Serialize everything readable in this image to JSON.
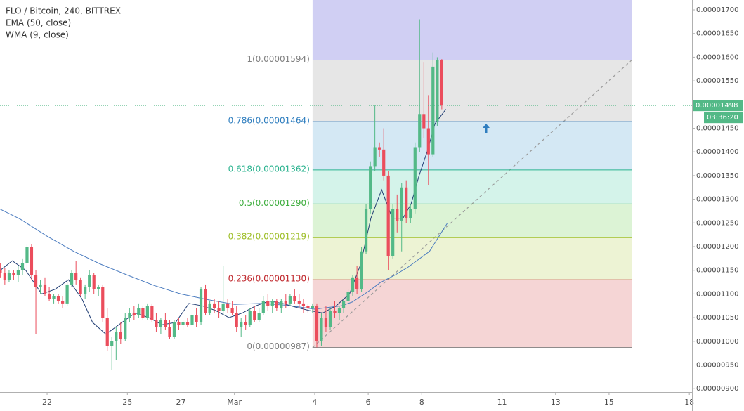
{
  "chart_data": {
    "type": "candlestick",
    "title": "FLO / Bitcoin, 240, BITTREX",
    "up_color": "#53b987",
    "down_color": "#eb4d5c",
    "x": [
      20.25,
      20.42,
      20.58,
      20.75,
      20.92,
      21.08,
      21.25,
      21.42,
      21.58,
      21.75,
      21.92,
      22.08,
      22.25,
      22.42,
      22.58,
      22.75,
      22.92,
      23.08,
      23.25,
      23.42,
      23.58,
      23.75,
      23.92,
      24.08,
      24.25,
      24.42,
      24.58,
      24.75,
      24.92,
      25.08,
      25.25,
      25.42,
      25.58,
      25.75,
      25.92,
      26.08,
      26.25,
      26.42,
      26.58,
      26.75,
      26.92,
      27.08,
      27.25,
      27.42,
      27.58,
      27.75,
      27.92,
      28.08,
      28.25,
      28.42,
      28.58,
      28.75,
      28.92,
      29.08,
      29.25,
      29.42,
      29.58,
      29.75,
      29.92,
      30.08,
      30.25,
      30.42,
      30.58,
      30.75,
      30.92,
      31.08,
      31.25,
      31.42,
      31.58,
      31.75,
      31.92,
      32.08,
      32.25,
      32.42,
      32.58,
      32.75,
      32.92,
      33.08,
      33.25,
      33.42,
      33.58,
      33.75,
      33.92,
      34.08,
      34.25,
      34.42,
      34.58,
      34.75,
      34.92,
      35.08,
      35.25,
      35.42,
      35.58,
      35.75,
      35.92,
      36.08,
      36.25,
      36.42,
      36.58,
      36.75
    ],
    "open": [
      1.15e-05,
      1.145e-05,
      1.13e-05,
      1.145e-05,
      1.14e-05,
      1.15e-05,
      1.165e-05,
      1.2e-05,
      1.14e-05,
      1.115e-05,
      1.12e-05,
      1.1e-05,
      1.09e-05,
      1.095e-05,
      1.085e-05,
      1.08e-05,
      1.12e-05,
      1.145e-05,
      1.13e-05,
      1.1e-05,
      1.115e-05,
      1.14e-05,
      1.11e-05,
      1.115e-05,
      1.05e-05,
      9.9e-06,
      1e-05,
      1.02e-05,
      1.005e-05,
      1.05e-05,
      1.06e-05,
      1.055e-05,
      1.07e-05,
      1.05e-05,
      1.075e-05,
      1.045e-05,
      1.03e-05,
      1.045e-05,
      1.03e-05,
      1.01e-05,
      1.04e-05,
      1.035e-05,
      1.04e-05,
      1.035e-05,
      1.055e-05,
      1.04e-05,
      1.11e-05,
      1.06e-05,
      1.08e-05,
      1.07e-05,
      1.065e-05,
      1.08e-05,
      1.07e-05,
      1.06e-05,
      1.03e-05,
      1.04e-05,
      1.035e-05,
      1.065e-05,
      1.045e-05,
      1.06e-05,
      1.085e-05,
      1.075e-05,
      1.085e-05,
      1.07e-05,
      1.085e-05,
      1.08e-05,
      1.095e-05,
      1.085e-05,
      1.08e-05,
      1.075e-05,
      1.07e-05,
      1.075e-05,
      1e-05,
      1.05e-05,
      1.03e-05,
      1.065e-05,
      1.06e-05,
      1.07e-05,
      1.085e-05,
      1.105e-05,
      1.135e-05,
      1.11e-05,
      1.19e-05,
      1.28e-05,
      1.37e-05,
      1.41e-05,
      1.405e-05,
      1.35e-05,
      1.18e-05,
      1.28e-05,
      1.255e-05,
      1.325e-05,
      1.26e-05,
      1.28e-05,
      1.41e-05,
      1.48e-05,
      1.45e-05,
      1.395e-05,
      1.465e-05,
      1.594e-05
    ],
    "high": [
      1.165e-05,
      1.155e-05,
      1.15e-05,
      1.15e-05,
      1.16e-05,
      1.175e-05,
      1.205e-05,
      1.205e-05,
      1.15e-05,
      1.13e-05,
      1.135e-05,
      1.115e-05,
      1.1e-05,
      1.1e-05,
      1.095e-05,
      1.125e-05,
      1.15e-05,
      1.17e-05,
      1.135e-05,
      1.12e-05,
      1.15e-05,
      1.145e-05,
      1.12e-05,
      1.12e-05,
      1.07e-05,
      1.01e-05,
      1.03e-05,
      1.04e-05,
      1.06e-05,
      1.07e-05,
      1.075e-05,
      1.08e-05,
      1.075e-05,
      1.08e-05,
      1.08e-05,
      1.06e-05,
      1.05e-05,
      1.06e-05,
      1.045e-05,
      1.045e-05,
      1.05e-05,
      1.045e-05,
      1.05e-05,
      1.06e-05,
      1.07e-05,
      1.115e-05,
      1.12e-05,
      1.085e-05,
      1.09e-05,
      1.085e-05,
      1.16e-05,
      1.09e-05,
      1.085e-05,
      1.075e-05,
      1.05e-05,
      1.055e-05,
      1.07e-05,
      1.075e-05,
      1.07e-05,
      1.095e-05,
      1.1e-05,
      1.09e-05,
      1.09e-05,
      1.09e-05,
      1.1e-05,
      1.1e-05,
      1.11e-05,
      1.1e-05,
      1.09e-05,
      1.08e-05,
      1.08e-05,
      1.08e-05,
      1.06e-05,
      1.075e-05,
      1.07e-05,
      1.085e-05,
      1.075e-05,
      1.09e-05,
      1.11e-05,
      1.14e-05,
      1.16e-05,
      1.2e-05,
      1.29e-05,
      1.38e-05,
      1.498e-05,
      1.42e-05,
      1.45e-05,
      1.36e-05,
      1.29e-05,
      1.31e-05,
      1.335e-05,
      1.34e-05,
      1.29e-05,
      1.42e-05,
      1.68e-05,
      1.59e-05,
      1.52e-05,
      1.61e-05,
      1.6e-05,
      1.596e-05
    ],
    "low": [
      1.135e-05,
      1.12e-05,
      1.125e-05,
      1.13e-05,
      1.125e-05,
      1.14e-05,
      1.15e-05,
      1.13e-05,
      1.015e-05,
      1.1e-05,
      1.095e-05,
      1.085e-05,
      1.08e-05,
      1.08e-05,
      1.07e-05,
      1.075e-05,
      1.115e-05,
      1.12e-05,
      1.095e-05,
      1.09e-05,
      1.105e-05,
      1.1e-05,
      1.095e-05,
      1.04e-05,
      9.8e-06,
      9.4e-06,
      9.6e-06,
      9.95e-06,
      1e-05,
      1.04e-05,
      1.045e-05,
      1.05e-05,
      1.045e-05,
      1.045e-05,
      1.04e-05,
      1.02e-05,
      1.015e-05,
      1.025e-05,
      1.005e-05,
      1.005e-05,
      1.025e-05,
      1.025e-05,
      1.03e-05,
      1.03e-05,
      1.03e-05,
      1.035e-05,
      1.055e-05,
      1.055e-05,
      1.06e-05,
      1.05e-05,
      1.055e-05,
      1.06e-05,
      1.055e-05,
      1.02e-05,
      1.01e-05,
      1.025e-05,
      1.03e-05,
      1.04e-05,
      1.04e-05,
      1.055e-05,
      1.065e-05,
      1.06e-05,
      1.065e-05,
      1.06e-05,
      1.07e-05,
      1.075e-05,
      1.08e-05,
      1.07e-05,
      1.06e-05,
      1.06e-05,
      1.06e-05,
      9.87e-06,
      9.9e-06,
      1.02e-05,
      1.025e-05,
      1.05e-05,
      1.045e-05,
      1.06e-05,
      1.08e-05,
      1.095e-05,
      1.1e-05,
      1.105e-05,
      1.185e-05,
      1.27e-05,
      1.36e-05,
      1.39e-05,
      1.34e-05,
      1.15e-05,
      1.175e-05,
      1.23e-05,
      1.19e-05,
      1.25e-05,
      1.25e-05,
      1.27e-05,
      1.4e-05,
      1.43e-05,
      1.33e-05,
      1.39e-05,
      1.455e-05,
      1.49e-05
    ],
    "close": [
      1.145e-05,
      1.13e-05,
      1.145e-05,
      1.14e-05,
      1.15e-05,
      1.165e-05,
      1.2e-05,
      1.14e-05,
      1.115e-05,
      1.12e-05,
      1.1e-05,
      1.09e-05,
      1.095e-05,
      1.085e-05,
      1.08e-05,
      1.12e-05,
      1.145e-05,
      1.13e-05,
      1.1e-05,
      1.115e-05,
      1.14e-05,
      1.11e-05,
      1.115e-05,
      1.05e-05,
      9.9e-06,
      1e-05,
      1.02e-05,
      1.005e-05,
      1.05e-05,
      1.06e-05,
      1.055e-05,
      1.07e-05,
      1.05e-05,
      1.075e-05,
      1.045e-05,
      1.03e-05,
      1.045e-05,
      1.03e-05,
      1.01e-05,
      1.04e-05,
      1.035e-05,
      1.04e-05,
      1.035e-05,
      1.055e-05,
      1.04e-05,
      1.11e-05,
      1.06e-05,
      1.08e-05,
      1.07e-05,
      1.065e-05,
      1.08e-05,
      1.07e-05,
      1.06e-05,
      1.03e-05,
      1.04e-05,
      1.035e-05,
      1.065e-05,
      1.045e-05,
      1.06e-05,
      1.085e-05,
      1.075e-05,
      1.085e-05,
      1.07e-05,
      1.085e-05,
      1.08e-05,
      1.095e-05,
      1.085e-05,
      1.08e-05,
      1.075e-05,
      1.07e-05,
      1.075e-05,
      1e-05,
      1.05e-05,
      1.03e-05,
      1.065e-05,
      1.06e-05,
      1.07e-05,
      1.085e-05,
      1.105e-05,
      1.135e-05,
      1.11e-05,
      1.19e-05,
      1.28e-05,
      1.37e-05,
      1.41e-05,
      1.405e-05,
      1.35e-05,
      1.18e-05,
      1.28e-05,
      1.255e-05,
      1.325e-05,
      1.26e-05,
      1.28e-05,
      1.41e-05,
      1.48e-05,
      1.45e-05,
      1.395e-05,
      1.58e-05,
      1.594e-05,
      1.498e-05
    ],
    "indicators": [
      {
        "name": "EMA (50, close)",
        "color": "#4a7bbf",
        "x": [
          20.25,
          21,
          22,
          23,
          24,
          25,
          26,
          27,
          28,
          29,
          30,
          31,
          32,
          33,
          33.4,
          34,
          34.45,
          35,
          35.5,
          36.29,
          36.95
        ],
        "values": [
          1.279e-05,
          1.258e-05,
          1.222e-05,
          1.19e-05,
          1.163e-05,
          1.14e-05,
          1.118e-05,
          1.1e-05,
          1.088e-05,
          1.078e-05,
          1.08e-05,
          1.076e-05,
          1.068e-05,
          1.075e-05,
          1.083e-05,
          1.105e-05,
          1.124e-05,
          1.14e-05,
          1.157e-05,
          1.19e-05,
          1.249e-05
        ]
      },
      {
        "name": "WMA (9, close)",
        "color": "#1f3c73",
        "x": [
          20.25,
          20.7,
          21.2,
          21.8,
          22.3,
          22.8,
          23.3,
          23.7,
          24.2,
          24.8,
          25.3,
          25.8,
          26.3,
          26.8,
          27.3,
          27.8,
          28.3,
          28.8,
          29.3,
          29.8,
          30.3,
          30.8,
          31.3,
          31.8,
          32.3,
          32.8,
          33.3,
          33.7,
          34.1,
          34.5,
          34.9,
          35.3,
          35.6,
          35.9,
          36.2,
          36.5,
          36.9
        ],
        "values": [
          1.15e-05,
          1.17e-05,
          1.15e-05,
          1.1e-05,
          1.11e-05,
          1.13e-05,
          1.09e-05,
          1.04e-05,
          1.015e-05,
          1.04e-05,
          1.06e-05,
          1.05e-05,
          1.035e-05,
          1.04e-05,
          1.08e-05,
          1.075e-05,
          1.065e-05,
          1.05e-05,
          1.06e-05,
          1.075e-05,
          1.085e-05,
          1.08e-05,
          1.072e-05,
          1.065e-05,
          1.06e-05,
          1.075e-05,
          1.1e-05,
          1.16e-05,
          1.26e-05,
          1.32e-05,
          1.26e-05,
          1.26e-05,
          1.29e-05,
          1.35e-05,
          1.4e-05,
          1.46e-05,
          1.49e-05
        ]
      }
    ],
    "fib": {
      "x": [
        31.92,
        43.85
      ],
      "top_fill": "#d0cff3",
      "trend_color": "#9a9a9a",
      "levels": [
        {
          "label": "1(0.00001594)",
          "value": 1.594e-05,
          "color": "#808080",
          "fill": "#e6e6e6"
        },
        {
          "label": "0.786(0.00001464)",
          "value": 1.464e-05,
          "color": "#2f7ebf",
          "fill": "#d4e8f4"
        },
        {
          "label": "0.618(0.00001362)",
          "value": 1.362e-05,
          "color": "#2bb38f",
          "fill": "#d4f3ea"
        },
        {
          "label": "0.5(0.00001290)",
          "value": 1.29e-05,
          "color": "#3fae3f",
          "fill": "#dcf3d5"
        },
        {
          "label": "0.382(0.00001219)",
          "value": 1.219e-05,
          "color": "#9fbf2a",
          "fill": "#edf3d4"
        },
        {
          "label": "0.236(0.00001130)",
          "value": 1.13e-05,
          "color": "#c0282d",
          "fill": "#f5d5d5"
        },
        {
          "label": "0(0.00000987)",
          "value": 9.87e-06,
          "color": "#808080"
        }
      ]
    },
    "last_price": 1.498e-05,
    "countdown": "03:36:20",
    "xlim": [
      20.24,
      46.1
    ],
    "xticks": [
      22,
      25,
      27,
      {
        "value": 29,
        "label": "Mar"
      },
      {
        "value": 32,
        "label": "4"
      },
      {
        "value": 34,
        "label": "6"
      },
      {
        "value": 36,
        "label": "8"
      },
      {
        "value": 39,
        "label": "11"
      },
      {
        "value": 41,
        "label": "13"
      },
      {
        "value": 43,
        "label": "15"
      },
      {
        "value": 46,
        "label": "18"
      }
    ],
    "ylim": [
      8.929e-06,
      1.7208e-05
    ],
    "yticks": [
      {
        "value": 9e-06,
        "label": "0.00000900"
      },
      {
        "value": 9.5e-06,
        "label": "0.00000950"
      },
      {
        "value": 1e-05,
        "label": "0.00001000"
      },
      {
        "value": 1.05e-05,
        "label": "0.00001050"
      },
      {
        "value": 1.1e-05,
        "label": "0.00001100"
      },
      {
        "value": 1.15e-05,
        "label": "0.00001150"
      },
      {
        "value": 1.2e-05,
        "label": "0.00001200"
      },
      {
        "value": 1.25e-05,
        "label": "0.00001250"
      },
      {
        "value": 1.3e-05,
        "label": "0.00001300"
      },
      {
        "value": 1.35e-05,
        "label": "0.00001350"
      },
      {
        "value": 1.4e-05,
        "label": "0.00001400"
      },
      {
        "value": 1.45e-05,
        "label": "0.00001450"
      },
      {
        "value": 1.5e-05,
        "label": "0.00001500"
      },
      {
        "value": 1.55e-05,
        "label": "0.00001550"
      },
      {
        "value": 1.6e-05,
        "label": "0.00001600"
      },
      {
        "value": 1.65e-05,
        "label": "0.00001650"
      },
      {
        "value": 1.7e-05,
        "label": "0.00001700"
      }
    ]
  }
}
